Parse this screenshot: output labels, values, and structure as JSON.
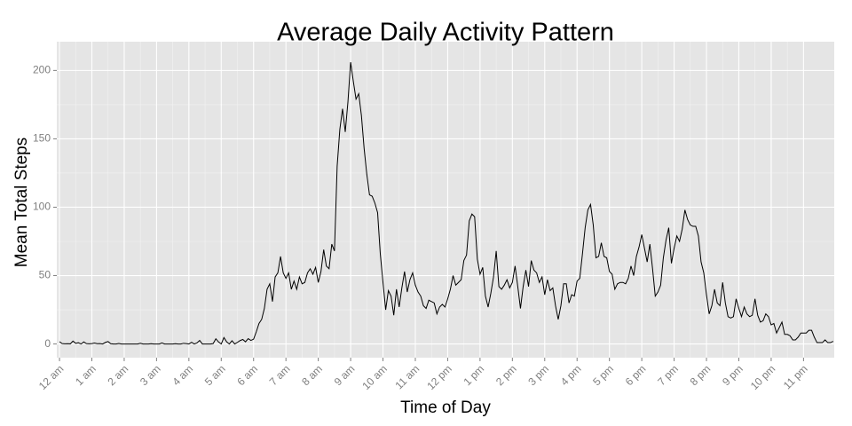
{
  "chart_data": {
    "type": "line",
    "title": "Average Daily Activity Pattern",
    "x_label": "Time of Day",
    "y_label": "Mean Total Steps",
    "x": [
      0,
      5,
      10,
      15,
      20,
      25,
      30,
      35,
      40,
      45,
      50,
      55,
      60,
      65,
      70,
      75,
      80,
      85,
      90,
      95,
      100,
      105,
      110,
      115,
      120,
      125,
      130,
      135,
      140,
      145,
      150,
      155,
      160,
      165,
      170,
      175,
      180,
      185,
      190,
      195,
      200,
      205,
      210,
      215,
      220,
      225,
      230,
      235,
      240,
      245,
      250,
      255,
      260,
      265,
      270,
      275,
      280,
      285,
      290,
      295,
      300,
      305,
      310,
      315,
      320,
      325,
      330,
      335,
      340,
      345,
      350,
      355,
      360,
      365,
      370,
      375,
      380,
      385,
      390,
      395,
      400,
      405,
      410,
      415,
      420,
      425,
      430,
      435,
      440,
      445,
      450,
      455,
      460,
      465,
      470,
      475,
      480,
      485,
      490,
      495,
      500,
      505,
      510,
      515,
      520,
      525,
      530,
      535,
      540,
      545,
      550,
      555,
      560,
      565,
      570,
      575,
      580,
      585,
      590,
      595,
      600,
      605,
      610,
      615,
      620,
      625,
      630,
      635,
      640,
      645,
      650,
      655,
      660,
      665,
      670,
      675,
      680,
      685,
      690,
      695,
      700,
      705,
      710,
      715,
      720,
      725,
      730,
      735,
      740,
      745,
      750,
      755,
      760,
      765,
      770,
      775,
      780,
      785,
      790,
      795,
      800,
      805,
      810,
      815,
      820,
      825,
      830,
      835,
      840,
      845,
      850,
      855,
      860,
      865,
      870,
      875,
      880,
      885,
      890,
      895,
      900,
      905,
      910,
      915,
      920,
      925,
      930,
      935,
      940,
      945,
      950,
      955,
      960,
      965,
      970,
      975,
      980,
      985,
      990,
      995,
      1000,
      1005,
      1010,
      1015,
      1020,
      1025,
      1030,
      1035,
      1040,
      1045,
      1050,
      1055,
      1060,
      1065,
      1070,
      1075,
      1080,
      1085,
      1090,
      1095,
      1100,
      1105,
      1110,
      1115,
      1120,
      1125,
      1130,
      1135,
      1140,
      1145,
      1150,
      1155,
      1160,
      1165,
      1170,
      1175,
      1180,
      1185,
      1190,
      1195,
      1200,
      1205,
      1210,
      1215,
      1220,
      1225,
      1230,
      1235,
      1240,
      1245,
      1250,
      1255,
      1260,
      1265,
      1270,
      1275,
      1280,
      1285,
      1290,
      1295,
      1300,
      1305,
      1310,
      1315,
      1320,
      1325,
      1330,
      1335,
      1340,
      1345,
      1350,
      1355,
      1360,
      1365,
      1370,
      1375,
      1380,
      1385,
      1390,
      1395,
      1400,
      1405,
      1410,
      1415,
      1420,
      1425,
      1430,
      1435
    ],
    "series": [
      {
        "color": "#000000",
        "values": [
          1.7,
          0.3,
          0.1,
          0.2,
          0.1,
          2.1,
          0.5,
          0.9,
          0,
          1.5,
          0.3,
          0.1,
          0.3,
          0.7,
          0.2,
          0.3,
          0,
          1.1,
          1.8,
          0.2,
          0,
          0,
          0.4,
          0,
          0,
          0,
          0,
          0,
          0,
          0,
          0.5,
          0,
          0,
          0,
          0.2,
          0,
          0,
          0,
          0.8,
          0,
          0,
          0,
          0,
          0.2,
          0,
          0,
          0.5,
          0.3,
          0,
          1.2,
          0,
          0.8,
          2.6,
          0,
          0,
          0,
          0,
          0.3,
          3.8,
          1.5,
          0,
          4.7,
          1.6,
          0,
          2.4,
          0,
          1.2,
          2.5,
          3.3,
          1.6,
          3.9,
          2.6,
          3.5,
          8.9,
          15,
          18,
          26,
          40,
          44,
          31,
          49,
          52,
          64,
          52,
          48,
          52,
          40,
          46,
          40,
          49,
          44,
          45,
          52,
          55,
          51,
          56,
          45,
          53,
          69,
          57,
          55,
          73,
          68,
          130,
          157,
          172,
          155,
          177,
          206,
          192,
          179,
          183,
          167,
          143,
          124,
          109,
          108,
          103,
          96,
          66,
          45,
          25,
          39,
          35,
          21,
          40,
          27,
          41,
          53,
          38,
          47,
          52,
          43,
          38,
          35,
          28,
          26,
          32,
          31,
          30,
          22,
          27,
          29,
          27,
          33,
          40,
          50,
          43,
          45,
          47,
          61,
          65,
          90,
          95,
          93,
          62,
          51,
          56,
          35,
          27,
          37,
          49,
          68,
          42,
          40,
          43,
          47,
          41,
          45,
          57,
          42,
          26,
          42,
          54,
          42,
          61,
          54,
          52,
          45,
          49,
          36,
          47,
          39,
          41,
          28,
          18,
          28,
          44,
          44,
          30,
          36,
          35,
          46,
          48,
          66,
          85,
          98,
          102,
          87,
          63,
          64,
          74,
          64,
          63,
          53,
          51,
          40,
          44,
          45,
          45,
          44,
          48,
          57,
          50,
          64,
          71,
          80,
          70,
          60,
          73,
          55,
          35,
          38,
          43,
          63,
          76,
          85,
          59,
          70,
          79,
          75,
          84,
          98,
          91,
          87,
          86,
          86,
          79,
          60,
          52,
          36,
          22,
          28,
          40,
          30,
          28,
          45,
          30,
          20,
          19,
          20,
          33,
          26,
          20,
          27,
          22,
          20,
          21,
          33,
          21,
          16,
          17,
          22,
          20,
          14,
          15,
          8,
          12,
          16,
          7,
          7,
          6,
          3,
          3,
          5,
          8,
          8,
          8,
          10,
          10,
          5,
          1,
          1,
          1,
          3,
          1,
          1,
          2
        ]
      }
    ],
    "xlim": [
      -5,
      1437
    ],
    "xticks": [
      {
        "value": 0,
        "label": "12 am"
      },
      {
        "value": 60,
        "label": "1 am"
      },
      {
        "value": 120,
        "label": "2 am"
      },
      {
        "value": 180,
        "label": "3 am"
      },
      {
        "value": 240,
        "label": "4 am"
      },
      {
        "value": 300,
        "label": "5 am"
      },
      {
        "value": 360,
        "label": "6 am"
      },
      {
        "value": 420,
        "label": "7 am"
      },
      {
        "value": 480,
        "label": "8 am"
      },
      {
        "value": 540,
        "label": "9 am"
      },
      {
        "value": 600,
        "label": "10 am"
      },
      {
        "value": 660,
        "label": "11 am"
      },
      {
        "value": 720,
        "label": "12 pm"
      },
      {
        "value": 780,
        "label": "1 pm"
      },
      {
        "value": 840,
        "label": "2 pm"
      },
      {
        "value": 900,
        "label": "3 pm"
      },
      {
        "value": 960,
        "label": "4 pm"
      },
      {
        "value": 1020,
        "label": "5 pm"
      },
      {
        "value": 1080,
        "label": "6 pm"
      },
      {
        "value": 1140,
        "label": "7 pm"
      },
      {
        "value": 1200,
        "label": "8 pm"
      },
      {
        "value": 1260,
        "label": "9 pm"
      },
      {
        "value": 1320,
        "label": "10 pm"
      },
      {
        "value": 1380,
        "label": "11 pm"
      }
    ],
    "ylim": [
      -10,
      221
    ],
    "yticks": [
      0,
      50,
      100,
      150,
      200
    ],
    "grid": true
  }
}
